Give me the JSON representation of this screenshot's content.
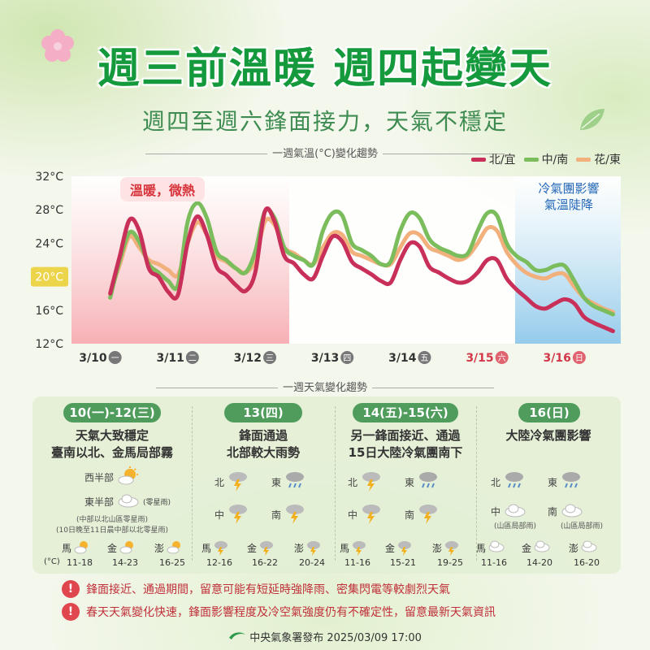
{
  "header": {
    "title": "週三前溫暖 週四起變天",
    "subtitle": "週四至週六鋒面接力，天氣不穩定"
  },
  "chart_data": {
    "type": "line",
    "title": "一週氣溫(°C)變化趨勢",
    "ylabel": "",
    "xlabel": "",
    "ylim": [
      12,
      32
    ],
    "yticks": [
      "32°C",
      "28°C",
      "24°C",
      "20°C",
      "16°C",
      "12°C"
    ],
    "highlight_tick": "20°C",
    "x_ticks": [
      {
        "date": "3/10",
        "day": "一",
        "weekend": false
      },
      {
        "date": "3/11",
        "day": "二",
        "weekend": false
      },
      {
        "date": "3/12",
        "day": "三",
        "weekend": false
      },
      {
        "date": "3/13",
        "day": "四",
        "weekend": false
      },
      {
        "date": "3/14",
        "day": "五",
        "weekend": false
      },
      {
        "date": "3/15",
        "day": "六",
        "weekend": true
      },
      {
        "date": "3/16",
        "day": "日",
        "weekend": true
      }
    ],
    "x": [
      0,
      0.125,
      0.25,
      0.375,
      0.5,
      0.625,
      0.75,
      0.875,
      1,
      1.125,
      1.25,
      1.375,
      1.5,
      1.625,
      1.75,
      1.875,
      2,
      2.125,
      2.25,
      2.375,
      2.5,
      2.625,
      2.75,
      2.875,
      3,
      3.125,
      3.25,
      3.375,
      3.5,
      3.625,
      3.75,
      3.875,
      4,
      4.125,
      4.25,
      4.375,
      4.5,
      4.625,
      4.75,
      4.875,
      5,
      5.125,
      5.25,
      5.375,
      5.5,
      5.625,
      5.75,
      5.875,
      6,
      6.125,
      6.25,
      6.375,
      6.5
    ],
    "series": [
      {
        "name": "北/宜",
        "color": "#c8305a",
        "values": [
          18.0,
          22.5,
          26.8,
          25.5,
          21.0,
          20.0,
          18.2,
          17.8,
          24.0,
          27.2,
          25.0,
          21.2,
          20.2,
          19.0,
          18.3,
          20.5,
          27.8,
          26.6,
          22.5,
          21.6,
          20.3,
          19.8,
          22.5,
          24.8,
          24.2,
          21.8,
          21.0,
          20.3,
          19.5,
          19.3,
          22.0,
          24.0,
          23.6,
          21.2,
          20.5,
          19.8,
          19.3,
          19.5,
          20.5,
          22.0,
          22.0,
          19.8,
          18.5,
          17.5,
          16.5,
          16.2,
          16.8,
          17.3,
          16.8,
          15.2,
          14.5,
          14.0,
          13.5
        ]
      },
      {
        "name": "中/南",
        "color": "#7bbc5c",
        "values": [
          17.5,
          22.0,
          25.3,
          24.2,
          21.5,
          20.5,
          19.5,
          19.0,
          26.5,
          28.8,
          27.0,
          23.0,
          22.0,
          21.0,
          20.5,
          23.0,
          27.8,
          27.0,
          23.5,
          22.5,
          22.0,
          21.5,
          25.5,
          27.6,
          27.3,
          24.0,
          23.2,
          22.5,
          21.5,
          21.8,
          25.5,
          27.6,
          27.0,
          24.5,
          23.5,
          23.0,
          22.5,
          22.8,
          25.5,
          27.6,
          27.3,
          24.0,
          22.5,
          21.8,
          20.8,
          20.8,
          21.3,
          21.3,
          19.5,
          17.5,
          16.5,
          16.0,
          15.5
        ]
      },
      {
        "name": "花/東",
        "color": "#f1b07c",
        "values": [
          18.0,
          21.5,
          24.8,
          23.5,
          22.0,
          21.5,
          20.8,
          20.2,
          24.0,
          26.5,
          25.0,
          22.5,
          21.8,
          21.0,
          20.5,
          22.0,
          26.6,
          26.2,
          23.5,
          22.8,
          22.0,
          21.5,
          23.5,
          25.2,
          25.0,
          23.0,
          22.5,
          22.0,
          21.5,
          21.5,
          23.5,
          25.2,
          25.0,
          23.5,
          23.0,
          22.5,
          22.0,
          22.5,
          24.0,
          25.8,
          25.5,
          23.0,
          21.5,
          20.5,
          20.0,
          19.8,
          20.3,
          20.3,
          18.8,
          17.5,
          16.8,
          16.2,
          15.8
        ]
      }
    ],
    "legend_position": "top-right",
    "annotations": {
      "warm": "溫暖，微熱",
      "cold_line1": "冷氣團影響",
      "cold_line2": "氣溫陡降"
    }
  },
  "weekly": {
    "title": "一週天氣變化趨勢",
    "unit": "(°C)",
    "periods": [
      {
        "label": "10(一)-12(三)",
        "summary1": "天氣大致穩定",
        "summary2": "臺南以北、金馬局部霧",
        "west": "西半部",
        "east": "東半部",
        "east_note": "(零星雨)",
        "note1": "(中部以北山區零星雨)",
        "note2": "(10日晚至11日晨中部以北零星雨)",
        "islands": [
          {
            "name": "馬",
            "range": "11-18",
            "icon": "sun-cloud-icon"
          },
          {
            "name": "金",
            "range": "14-23",
            "icon": "sun-cloud-icon"
          },
          {
            "name": "澎",
            "range": "16-25",
            "icon": "sun-cloud-icon"
          }
        ]
      },
      {
        "label": "13(四)",
        "summary1": "鋒面通過",
        "summary2": "北部較大雨勢",
        "north": "北",
        "east": "東",
        "central": "中",
        "south": "南",
        "islands": [
          {
            "name": "馬",
            "range": "12-16",
            "icon": "thunder-rain-icon"
          },
          {
            "name": "金",
            "range": "16-22",
            "icon": "thunder-rain-icon"
          },
          {
            "name": "澎",
            "range": "20-24",
            "icon": "thunder-rain-icon"
          }
        ]
      },
      {
        "label": "14(五)-15(六)",
        "summary1": "另一鋒面接近、通過",
        "summary2": "15日大陸冷氣團南下",
        "north": "北",
        "east": "東",
        "central": "中",
        "south": "南",
        "islands": [
          {
            "name": "馬",
            "range": "11-16",
            "icon": "thunder-rain-icon"
          },
          {
            "name": "金",
            "range": "15-21",
            "icon": "thunder-rain-icon"
          },
          {
            "name": "澎",
            "range": "19-25",
            "icon": "thunder-rain-icon"
          }
        ]
      },
      {
        "label": "16(日)",
        "summary1": "大陸冷氣團影響",
        "summary2": "",
        "north": "北",
        "east": "東",
        "central": "中",
        "south": "南",
        "central_note": "(山區局部雨)",
        "south_note": "(山區局部雨)",
        "islands": [
          {
            "name": "馬",
            "range": "11-16",
            "icon": "cloud-icon"
          },
          {
            "name": "金",
            "range": "14-20",
            "icon": "cloud-icon"
          },
          {
            "name": "澎",
            "range": "16-20",
            "icon": "cloud-icon"
          }
        ]
      }
    ]
  },
  "alerts": [
    "鋒面接近、通過期間，留意可能有短延時強降雨、密集閃電等較劇烈天氣",
    "春天天氣變化快速，鋒面影響程度及冷空氣強度仍有不確定性，留意最新天氣資訊"
  ],
  "footer": "中央氣象署發布 2025/03/09 17:00"
}
